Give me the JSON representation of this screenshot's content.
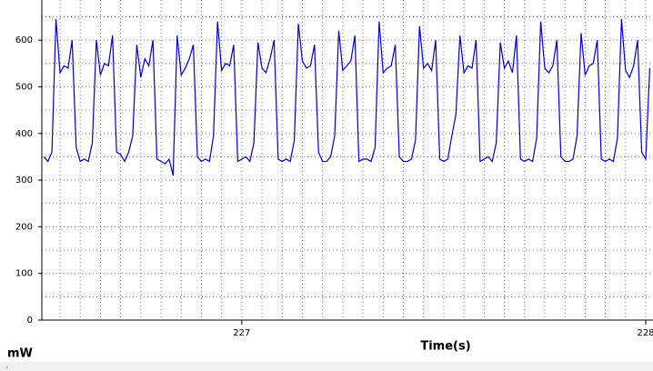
{
  "chart_data": {
    "type": "line",
    "y_label": "mW",
    "x_label": "Time(s)",
    "color": "#0000cc",
    "xlim": [
      226.505,
      228.018
    ],
    "ylim": [
      0,
      686
    ],
    "yticks": [
      0,
      100,
      200,
      300,
      400,
      500,
      600
    ],
    "xticks": [
      227,
      228
    ],
    "grid": true,
    "ygrid_step": 50,
    "xgrid_step": 0.05,
    "x": [
      226.51,
      226.52,
      226.53,
      226.54,
      226.55,
      226.56,
      226.57,
      226.58,
      226.59,
      226.6,
      226.61,
      226.62,
      226.63,
      226.64,
      226.65,
      226.66,
      226.67,
      226.68,
      226.69,
      226.7,
      226.71,
      226.72,
      226.73,
      226.74,
      226.75,
      226.76,
      226.77,
      226.78,
      226.79,
      226.8,
      226.81,
      226.82,
      226.83,
      226.84,
      226.85,
      226.86,
      226.87,
      226.88,
      226.89,
      226.9,
      226.91,
      226.92,
      226.93,
      226.94,
      226.95,
      226.96,
      226.97,
      226.98,
      226.99,
      227.0,
      227.01,
      227.02,
      227.03,
      227.04,
      227.05,
      227.06,
      227.07,
      227.08,
      227.09,
      227.1,
      227.11,
      227.12,
      227.13,
      227.14,
      227.15,
      227.16,
      227.17,
      227.18,
      227.19,
      227.2,
      227.21,
      227.22,
      227.23,
      227.24,
      227.25,
      227.26,
      227.27,
      227.28,
      227.29,
      227.3,
      227.31,
      227.32,
      227.33,
      227.34,
      227.35,
      227.36,
      227.37,
      227.38,
      227.39,
      227.4,
      227.41,
      227.42,
      227.43,
      227.44,
      227.45,
      227.46,
      227.47,
      227.48,
      227.49,
      227.5,
      227.51,
      227.52,
      227.53,
      227.54,
      227.55,
      227.56,
      227.57,
      227.58,
      227.59,
      227.6,
      227.61,
      227.62,
      227.63,
      227.64,
      227.65,
      227.66,
      227.67,
      227.68,
      227.69,
      227.7,
      227.71,
      227.72,
      227.73,
      227.74,
      227.75,
      227.76,
      227.77,
      227.78,
      227.79,
      227.8,
      227.81,
      227.82,
      227.83,
      227.84,
      227.85,
      227.86,
      227.87,
      227.88,
      227.89,
      227.9,
      227.91,
      227.92,
      227.93,
      227.94,
      227.95,
      227.96,
      227.97,
      227.98,
      227.99,
      228.0,
      228.01
    ],
    "values": [
      350,
      340,
      360,
      645,
      530,
      545,
      540,
      600,
      370,
      340,
      345,
      340,
      380,
      600,
      525,
      550,
      545,
      610,
      360,
      355,
      340,
      360,
      395,
      590,
      520,
      560,
      545,
      600,
      345,
      340,
      335,
      345,
      310,
      610,
      525,
      540,
      560,
      590,
      350,
      340,
      345,
      340,
      395,
      640,
      535,
      550,
      545,
      590,
      340,
      345,
      350,
      340,
      380,
      595,
      540,
      530,
      560,
      600,
      345,
      340,
      345,
      340,
      385,
      635,
      555,
      540,
      545,
      590,
      360,
      340,
      340,
      350,
      395,
      620,
      535,
      545,
      555,
      610,
      340,
      345,
      345,
      340,
      370,
      640,
      530,
      540,
      545,
      590,
      350,
      340,
      340,
      345,
      385,
      630,
      540,
      550,
      535,
      600,
      345,
      340,
      345,
      395,
      440,
      610,
      530,
      545,
      540,
      600,
      340,
      345,
      350,
      340,
      380,
      595,
      540,
      555,
      530,
      610,
      345,
      340,
      345,
      340,
      390,
      640,
      540,
      530,
      545,
      600,
      350,
      340,
      340,
      345,
      395,
      615,
      525,
      545,
      550,
      600,
      345,
      340,
      345,
      340,
      390,
      645,
      535,
      520,
      545,
      600,
      360,
      345,
      540
    ]
  }
}
